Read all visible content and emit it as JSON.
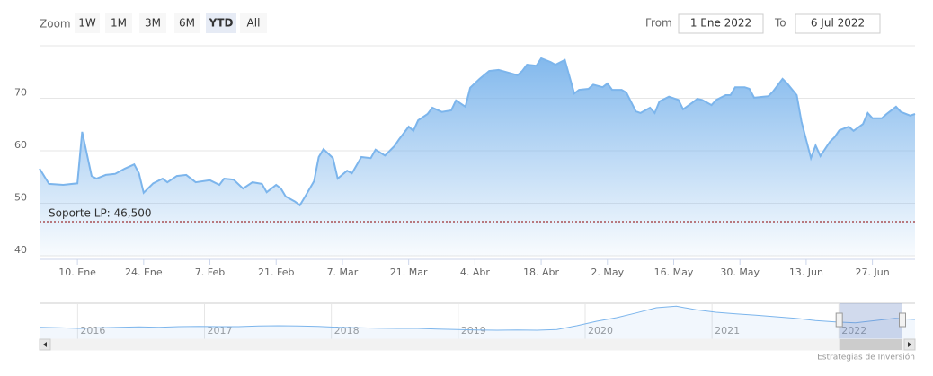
{
  "range_selector": {
    "zoom_label": "Zoom",
    "buttons": [
      "1W",
      "1M",
      "3M",
      "6M",
      "YTD",
      "All"
    ],
    "selected": "YTD",
    "from_label": "From",
    "from": "1 Ene 2022",
    "to_label": "To",
    "to": "6 Jul 2022"
  },
  "chart_data": {
    "type": "area",
    "color": "#7cb5ec",
    "grid": true,
    "x": [
      "2022-01-02",
      "2022-01-04",
      "2022-01-07",
      "2022-01-10",
      "2022-01-11",
      "2022-01-13",
      "2022-01-14",
      "2022-01-16",
      "2022-01-18",
      "2022-01-20",
      "2022-01-22",
      "2022-01-23",
      "2022-01-24",
      "2022-01-26",
      "2022-01-28",
      "2022-01-29",
      "2022-01-31",
      "2022-02-02",
      "2022-02-04",
      "2022-02-07",
      "2022-02-09",
      "2022-02-10",
      "2022-02-12",
      "2022-02-14",
      "2022-02-16",
      "2022-02-18",
      "2022-02-19",
      "2022-02-21",
      "2022-02-22",
      "2022-02-23",
      "2022-02-25",
      "2022-02-26",
      "2022-02-27",
      "2022-03-01",
      "2022-03-02",
      "2022-03-03",
      "2022-03-05",
      "2022-03-06",
      "2022-03-08",
      "2022-03-09",
      "2022-03-11",
      "2022-03-13",
      "2022-03-14",
      "2022-03-16",
      "2022-03-18",
      "2022-03-19",
      "2022-03-21",
      "2022-03-22",
      "2022-03-23",
      "2022-03-25",
      "2022-03-26",
      "2022-03-28",
      "2022-03-30",
      "2022-03-31",
      "2022-04-02",
      "2022-04-03",
      "2022-04-05",
      "2022-04-07",
      "2022-04-09",
      "2022-04-11",
      "2022-04-13",
      "2022-04-14",
      "2022-04-15",
      "2022-04-17",
      "2022-04-18",
      "2022-04-20",
      "2022-04-21",
      "2022-04-23",
      "2022-04-25",
      "2022-04-26",
      "2022-04-28",
      "2022-04-29",
      "2022-05-01",
      "2022-05-02",
      "2022-05-03",
      "2022-05-05",
      "2022-05-06",
      "2022-05-08",
      "2022-05-09",
      "2022-05-11",
      "2022-05-12",
      "2022-05-13",
      "2022-05-15",
      "2022-05-17",
      "2022-05-18",
      "2022-05-20",
      "2022-05-21",
      "2022-05-22",
      "2022-05-24",
      "2022-05-25",
      "2022-05-27",
      "2022-05-28",
      "2022-05-29",
      "2022-05-31",
      "2022-06-01",
      "2022-06-02",
      "2022-06-04",
      "2022-06-05",
      "2022-06-06",
      "2022-06-08",
      "2022-06-09",
      "2022-06-11",
      "2022-06-12",
      "2022-06-14",
      "2022-06-15",
      "2022-06-16",
      "2022-06-18",
      "2022-06-19",
      "2022-06-20",
      "2022-06-22",
      "2022-06-23",
      "2022-06-25",
      "2022-06-26",
      "2022-06-27",
      "2022-06-29",
      "2022-06-30",
      "2022-07-02",
      "2022-07-03",
      "2022-07-05",
      "2022-07-06"
    ],
    "values": [
      56.6,
      53.7,
      53.5,
      53.8,
      63.6,
      55.2,
      54.7,
      55.4,
      55.6,
      56.6,
      57.4,
      55.7,
      52.0,
      53.8,
      54.7,
      54.0,
      55.2,
      55.4,
      54.0,
      54.4,
      53.5,
      54.7,
      54.5,
      52.8,
      54.0,
      53.7,
      52.1,
      53.5,
      52.8,
      51.3,
      50.3,
      49.6,
      51.1,
      54.2,
      58.8,
      60.3,
      58.6,
      54.7,
      56.2,
      55.7,
      58.8,
      58.6,
      60.2,
      59.1,
      60.9,
      62.2,
      64.6,
      63.8,
      65.8,
      67.0,
      68.2,
      67.4,
      67.7,
      69.6,
      68.4,
      72.0,
      73.7,
      75.2,
      75.4,
      74.9,
      74.4,
      75.2,
      76.4,
      76.2,
      77.6,
      76.9,
      76.4,
      77.3,
      70.9,
      71.6,
      71.8,
      72.6,
      72.1,
      72.8,
      71.6,
      71.6,
      71.1,
      67.5,
      67.2,
      68.2,
      67.2,
      69.4,
      70.3,
      69.7,
      67.9,
      69.2,
      69.9,
      69.7,
      68.7,
      69.7,
      70.6,
      70.6,
      72.1,
      72.1,
      71.8,
      70.1,
      70.3,
      70.4,
      71.3,
      73.7,
      72.8,
      70.6,
      65.6,
      58.6,
      61.0,
      59.0,
      61.7,
      62.6,
      63.9,
      64.6,
      63.8,
      65.1,
      67.2,
      66.2,
      66.2,
      67.0,
      68.4,
      67.4,
      66.7,
      67.0
    ],
    "xlim": [
      "2022-01-02",
      "2022-07-06"
    ],
    "xticks": [
      {
        "value": "2022-01-10",
        "label": "10. Ene"
      },
      {
        "value": "2022-01-24",
        "label": "24. Ene"
      },
      {
        "value": "2022-02-07",
        "label": "7. Feb"
      },
      {
        "value": "2022-02-21",
        "label": "21. Feb"
      },
      {
        "value": "2022-03-07",
        "label": "7. Mar"
      },
      {
        "value": "2022-03-21",
        "label": "21. Mar"
      },
      {
        "value": "2022-04-04",
        "label": "4. Abr"
      },
      {
        "value": "2022-04-18",
        "label": "18. Abr"
      },
      {
        "value": "2022-05-02",
        "label": "2. May"
      },
      {
        "value": "2022-05-16",
        "label": "16. May"
      },
      {
        "value": "2022-05-30",
        "label": "30. May"
      },
      {
        "value": "2022-06-13",
        "label": "13. Jun"
      },
      {
        "value": "2022-06-27",
        "label": "27. Jun"
      }
    ],
    "ylim": [
      40,
      80
    ],
    "yticks": [
      40,
      50,
      60,
      70
    ],
    "plot_line": {
      "value": 46.5,
      "label": "Soporte LP: 46,500",
      "color": "#8b0000"
    }
  },
  "navigator": {
    "xlim": [
      2015.7,
      2022.6
    ],
    "xticks": [
      2016,
      2017,
      2018,
      2019,
      2020,
      2021,
      2022
    ],
    "ylim": [
      0,
      120
    ],
    "values": [
      40,
      38,
      36,
      38,
      40,
      41,
      40,
      42,
      43,
      42,
      42,
      44,
      45,
      44,
      43,
      40,
      38,
      37,
      36,
      36,
      34,
      32,
      31,
      30,
      31,
      30,
      32,
      45,
      60,
      72,
      88,
      105,
      110,
      98,
      90,
      85,
      80,
      75,
      70,
      62,
      58,
      55,
      62,
      70,
      66
    ]
  },
  "credits": "Estrategias de Inversión"
}
